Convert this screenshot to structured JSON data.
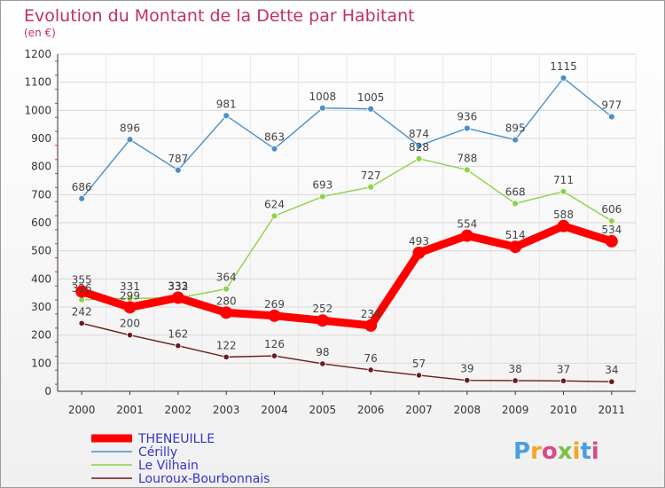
{
  "chart_data": {
    "type": "line",
    "title": "Evolution du Montant de la Dette par Habitant",
    "subtitle": "(en €)",
    "xlabel": "",
    "ylabel": "",
    "ylim": [
      0,
      1200
    ],
    "y_ticks": [
      0,
      100,
      200,
      300,
      400,
      500,
      600,
      700,
      800,
      900,
      1000,
      1100,
      1200
    ],
    "x": [
      "2000",
      "2001",
      "2002",
      "2003",
      "2004",
      "2005",
      "2006",
      "2007",
      "2008",
      "2009",
      "2010",
      "2011"
    ],
    "grid": true,
    "legend_position": "bottom-left",
    "series": [
      {
        "name": "Cérilly",
        "color": "#4a90c8",
        "values": [
          686,
          896,
          787,
          981,
          863,
          1008,
          1005,
          874,
          936,
          895,
          1115,
          977
        ]
      },
      {
        "name": "Le Vilhain",
        "color": "#8ed14b",
        "values": [
          326,
          331,
          332,
          364,
          624,
          693,
          727,
          828,
          788,
          668,
          711,
          606
        ]
      },
      {
        "name": "Louroux-Bourbonnais",
        "color": "#6b1a1a",
        "values": [
          242,
          200,
          162,
          122,
          126,
          98,
          76,
          57,
          39,
          38,
          37,
          34
        ]
      },
      {
        "name": "THENEUILLE",
        "color": "#ff0000",
        "values": [
          355,
          299,
          333,
          280,
          269,
          252,
          234,
          493,
          554,
          514,
          588,
          534
        ]
      }
    ]
  },
  "legend_order": [
    3,
    0,
    1,
    2
  ],
  "logo": {
    "text": "Proxiti"
  }
}
